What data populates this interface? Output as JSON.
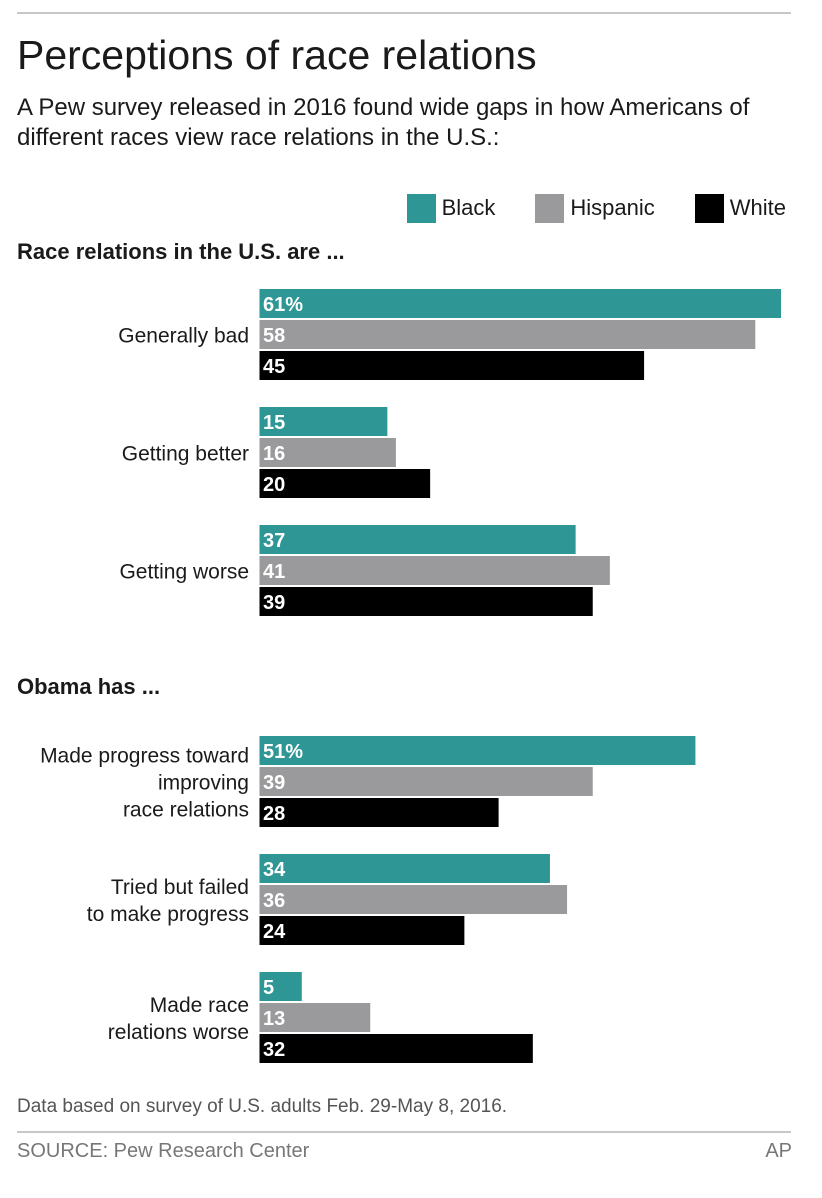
{
  "title": "Perceptions of race relations",
  "subtitle": "A Pew survey released in 2016 found wide gaps in how Americans of different races view race relations in the U.S.:",
  "legend": [
    {
      "label": "Black",
      "color": "#2e9694"
    },
    {
      "label": "Hispanic",
      "color": "#9a9a9c"
    },
    {
      "label": "White",
      "color": "#000000"
    }
  ],
  "chart_data": [
    {
      "type": "bar",
      "orientation": "horizontal",
      "title": "Race relations in the U.S. are ...",
      "categories": [
        [
          "Generally bad"
        ],
        [
          "Getting better"
        ],
        [
          "Getting worse"
        ]
      ],
      "series": [
        {
          "name": "Black",
          "color": "#2e9694",
          "values": [
            61,
            15,
            37
          ],
          "labels": [
            "61%",
            "15",
            "37"
          ]
        },
        {
          "name": "Hispanic",
          "color": "#9a9a9c",
          "values": [
            58,
            16,
            41
          ],
          "labels": [
            "58",
            "16",
            "41"
          ]
        },
        {
          "name": "White",
          "color": "#000000",
          "values": [
            45,
            20,
            39
          ],
          "labels": [
            "45",
            "20",
            "39"
          ]
        }
      ],
      "xlim": [
        0,
        61
      ],
      "grid": false
    },
    {
      "type": "bar",
      "orientation": "horizontal",
      "title": "Obama has ...",
      "categories": [
        [
          "Made progress toward",
          "improving",
          "race relations"
        ],
        [
          "Tried but failed",
          "to make progress"
        ],
        [
          "Made race",
          "relations worse"
        ]
      ],
      "series": [
        {
          "name": "Black",
          "color": "#2e9694",
          "values": [
            51,
            34,
            5
          ],
          "labels": [
            "51%",
            "34",
            "5"
          ]
        },
        {
          "name": "Hispanic",
          "color": "#9a9a9c",
          "values": [
            39,
            36,
            13
          ],
          "labels": [
            "39",
            "36",
            "13"
          ]
        },
        {
          "name": "White",
          "color": "#000000",
          "values": [
            28,
            24,
            32
          ],
          "labels": [
            "28",
            "24",
            "32"
          ]
        }
      ],
      "xlim": [
        0,
        61
      ],
      "grid": false
    }
  ],
  "note": "Data based on survey of U.S. adults Feb. 29-May 8, 2016.",
  "source": "SOURCE: Pew Research Center",
  "credit": "AP"
}
